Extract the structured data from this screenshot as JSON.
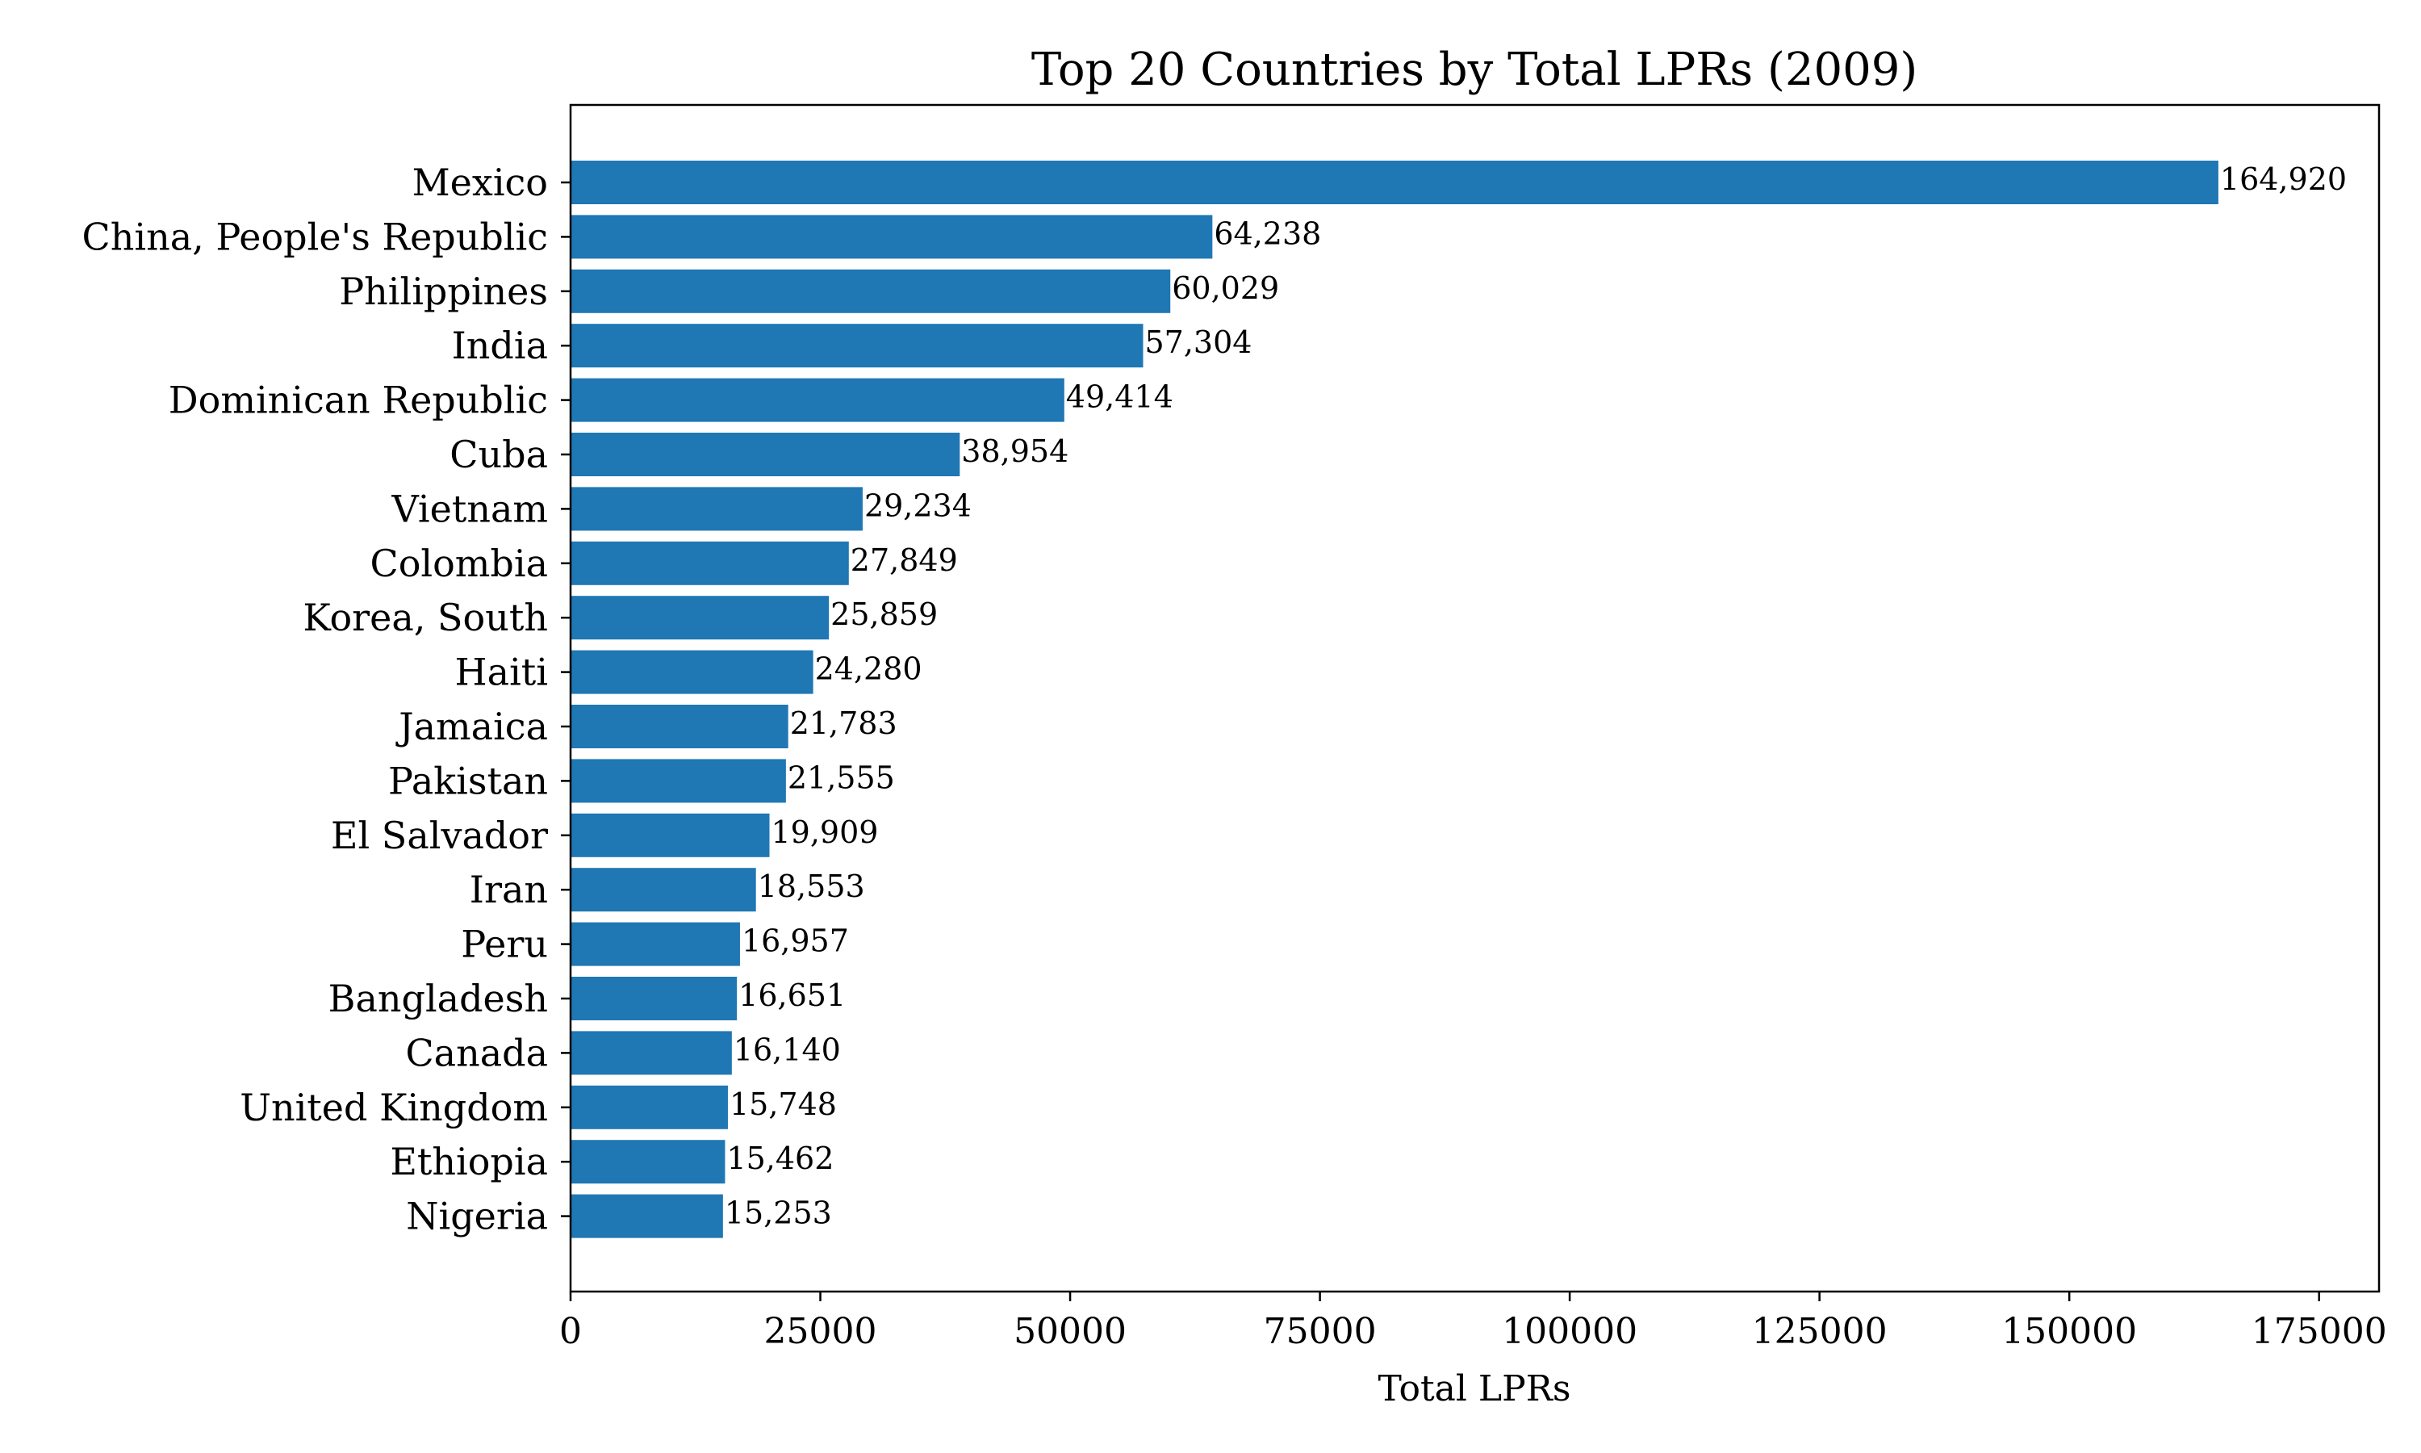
{
  "chart_data": {
    "type": "bar",
    "orientation": "horizontal",
    "title": "Top 20 Countries by Total LPRs (2009)",
    "xlabel": "Total LPRs",
    "ylabel": "",
    "xlim": [
      0,
      181000
    ],
    "xticks": [
      0,
      25000,
      50000,
      75000,
      100000,
      125000,
      150000,
      175000
    ],
    "xtick_labels": [
      "0",
      "25000",
      "50000",
      "75000",
      "100000",
      "125000",
      "150000",
      "175000"
    ],
    "grid": false,
    "bar_color": "#1f77b4",
    "categories": [
      "Mexico",
      "China, People's Republic",
      "Philippines",
      "India",
      "Dominican Republic",
      "Cuba",
      "Vietnam",
      "Colombia",
      "Korea, South",
      "Haiti",
      "Jamaica",
      "Pakistan",
      "El Salvador",
      "Iran",
      "Peru",
      "Bangladesh",
      "Canada",
      "United Kingdom",
      "Ethiopia",
      "Nigeria"
    ],
    "values": [
      164920,
      64238,
      60029,
      57304,
      49414,
      38954,
      29234,
      27849,
      25859,
      24280,
      21783,
      21555,
      19909,
      18553,
      16957,
      16651,
      16140,
      15748,
      15462,
      15253
    ],
    "value_labels": [
      "164,920",
      "64,238",
      "60,029",
      "57,304",
      "49,414",
      "38,954",
      "29,234",
      "27,849",
      "25,859",
      "24,280",
      "21,783",
      "21,555",
      "19,909",
      "18,553",
      "16,957",
      "16,651",
      "16,140",
      "15,748",
      "15,462",
      "15,253"
    ]
  }
}
